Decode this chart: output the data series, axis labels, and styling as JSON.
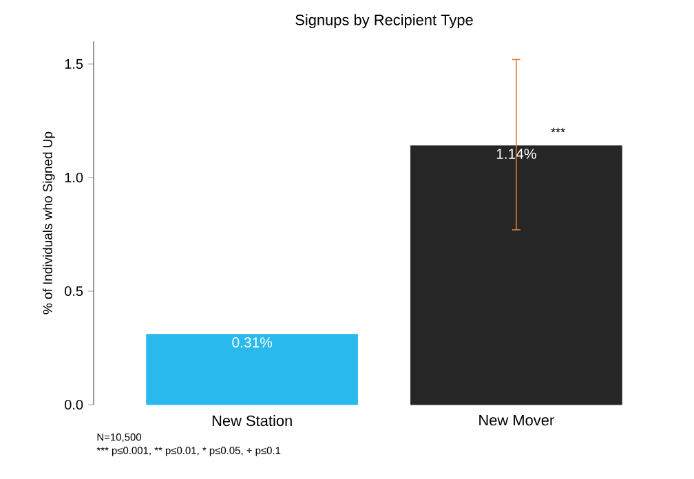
{
  "chart_data": {
    "type": "bar",
    "title": "Signups by Recipient Type",
    "ylabel": "% of Individuals who Signed Up",
    "categories": [
      "New Station",
      "New Mover"
    ],
    "values": [
      0.31,
      1.14
    ],
    "colors": [
      "#29b9ec",
      "#262626"
    ],
    "value_labels": [
      "0.31%",
      "1.14%"
    ],
    "errors": [
      null,
      [
        0.77,
        1.52
      ]
    ],
    "ylim": [
      0,
      1.6
    ],
    "yticks": [
      {
        "value": 0,
        "label": "0.0"
      },
      {
        "value": 0.5,
        "label": "0.5"
      },
      {
        "value": 1,
        "label": "1.0"
      },
      {
        "value": 1.5,
        "label": "1.5"
      }
    ],
    "annotations": [
      {
        "text": "***",
        "x": "New Mover",
        "y": 1.18
      },
      "N=10,500",
      "*** p≤0.001, ** p≤0.01, * p≤0.05, + p≤0.1"
    ],
    "grid": false
  }
}
